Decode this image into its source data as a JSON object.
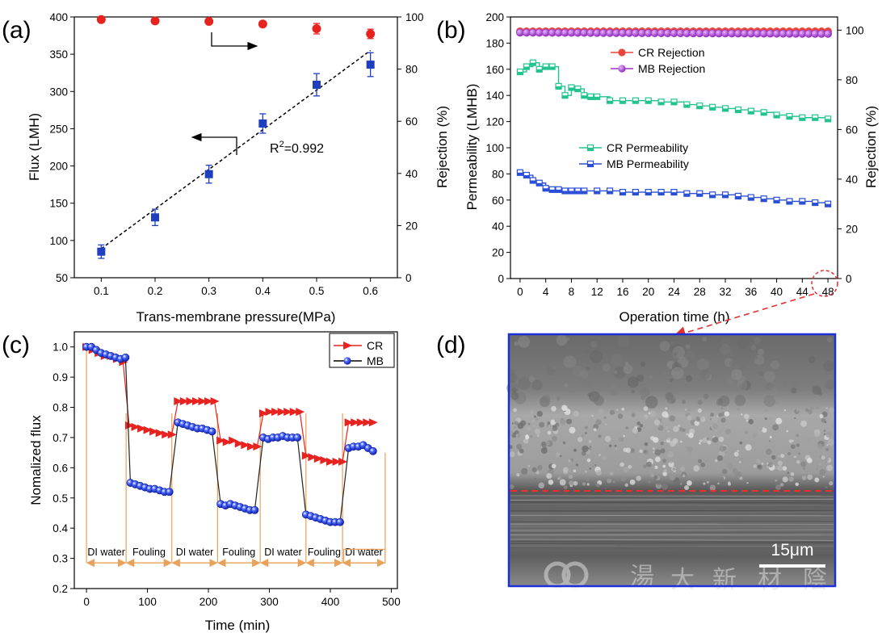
{
  "chart_data": [
    {
      "panel": "(a)",
      "type": "scatter",
      "xlabel": "Trans-membrane pressure(MPa)",
      "ylabel": "Flux (LMH)",
      "ylabel_right": "Rejection (%)",
      "xlim": [
        0.05,
        0.65
      ],
      "ylim": [
        50,
        400
      ],
      "ylim_right": [
        0,
        100
      ],
      "xticks": [
        0.1,
        0.2,
        0.3,
        0.4,
        0.5,
        0.6
      ],
      "yticks": [
        50,
        100,
        150,
        200,
        250,
        300,
        350,
        400
      ],
      "yticks_right": [
        0,
        20,
        40,
        60,
        80,
        100
      ],
      "series": [
        {
          "color": "#1f3fbf",
          "marker": "square",
          "axis": "left",
          "x": [
            0.1,
            0.2,
            0.3,
            0.4,
            0.5,
            0.6
          ],
          "y": [
            85,
            131,
            189,
            257,
            309,
            336
          ],
          "err": [
            9,
            11,
            12,
            13,
            15,
            16
          ]
        },
        {
          "color": "#e8231f",
          "marker": "circle",
          "axis": "right",
          "x": [
            0.1,
            0.2,
            0.3,
            0.4,
            0.5,
            0.6
          ],
          "y": [
            99,
            98.5,
            98.3,
            97.3,
            95.5,
            93.5
          ],
          "err": [
            0.5,
            0.8,
            0.8,
            1.0,
            2.0,
            1.8
          ]
        }
      ],
      "fit": {
        "style": "dashed",
        "x": [
          0.1,
          0.6
        ],
        "y": [
          89,
          355
        ],
        "label_base": "R",
        "label_sup": "2",
        "label_rest": "=0.992"
      }
    },
    {
      "panel": "(b)",
      "type": "line",
      "xlabel": "Operation time (h)",
      "ylabel": "Permeability (LMHB)",
      "ylabel_right": "Rejection (%)",
      "xlim": [
        -1.5,
        49.5
      ],
      "ylim": [
        0,
        200
      ],
      "ylim_right": [
        0,
        105.3
      ],
      "xticks": [
        0,
        4,
        8,
        12,
        16,
        20,
        24,
        28,
        32,
        36,
        40,
        44,
        48
      ],
      "yticks": [
        0,
        20,
        40,
        60,
        80,
        100,
        120,
        140,
        160,
        180,
        200
      ],
      "yticks_right": [
        0,
        20,
        40,
        60,
        80,
        100
      ],
      "legend": "top-right",
      "series": [
        {
          "name": "CR Rejection",
          "color": "#e8453c",
          "marker": "circle",
          "axis": "right",
          "x": [
            0,
            48
          ],
          "y": [
            99.5,
            99.5
          ]
        },
        {
          "name": "MB Rejection",
          "color": "#a030c8",
          "marker": "circle",
          "axis": "right",
          "x": [
            0,
            48
          ],
          "y": [
            99,
            98.5
          ]
        },
        {
          "name": "CR Permeability",
          "color": "#21c48f",
          "marker": "half-square",
          "axis": "left",
          "x": [
            0,
            1,
            2,
            3,
            4,
            5,
            6,
            7,
            8,
            9,
            10,
            11,
            12,
            14,
            16,
            18,
            20,
            22,
            24,
            26,
            28,
            30,
            32,
            34,
            36,
            38,
            40,
            42,
            44,
            46,
            48
          ],
          "y": [
            158,
            162,
            165,
            160,
            162,
            162,
            147,
            140,
            146,
            145,
            140,
            139,
            139,
            136,
            136,
            136,
            136,
            135,
            135,
            133,
            132,
            131,
            130,
            129,
            128,
            127,
            125,
            124,
            123,
            123,
            122
          ]
        },
        {
          "name": "MB Permeability",
          "color": "#2a4fd6",
          "marker": "half-square",
          "axis": "left",
          "x": [
            0,
            1,
            2,
            3,
            4,
            5,
            6,
            7,
            8,
            9,
            10,
            12,
            14,
            16,
            18,
            20,
            22,
            24,
            26,
            28,
            30,
            32,
            34,
            36,
            38,
            40,
            42,
            44,
            46,
            48
          ],
          "y": [
            81,
            79,
            75,
            73,
            69,
            68,
            68,
            67,
            67,
            67,
            67,
            67,
            67,
            66,
            66,
            66,
            66,
            66,
            65,
            65,
            64,
            64,
            63,
            62,
            61,
            60,
            59,
            59,
            58,
            57
          ]
        }
      ]
    },
    {
      "panel": "(c)",
      "type": "line",
      "xlabel": "Time (min)",
      "ylabel": "Nomalized flux",
      "xlim": [
        -20,
        510
      ],
      "ylim": [
        0.2,
        1.05
      ],
      "xticks": [
        0,
        100,
        200,
        300,
        400,
        500
      ],
      "yticks": [
        0.2,
        0.3,
        0.4,
        0.5,
        0.6,
        0.7,
        0.8,
        0.9,
        1.0
      ],
      "legend": "top-right",
      "series": [
        {
          "name": "CR",
          "color": "#e8231f",
          "marker": "triangle-right",
          "x": [
            0,
            10,
            20,
            30,
            40,
            50,
            60,
            70,
            80,
            90,
            100,
            110,
            120,
            130,
            140,
            150,
            160,
            170,
            180,
            190,
            200,
            210,
            220,
            230,
            240,
            250,
            260,
            270,
            280,
            290,
            300,
            310,
            320,
            330,
            340,
            350,
            360,
            370,
            380,
            390,
            400,
            410,
            420,
            430,
            440,
            450,
            460,
            470
          ],
          "y": [
            1.0,
            0.99,
            0.98,
            0.97,
            0.97,
            0.96,
            0.95,
            0.74,
            0.735,
            0.73,
            0.725,
            0.72,
            0.715,
            0.71,
            0.71,
            0.82,
            0.82,
            0.82,
            0.82,
            0.82,
            0.82,
            0.82,
            0.69,
            0.685,
            0.69,
            0.68,
            0.675,
            0.67,
            0.67,
            0.78,
            0.785,
            0.785,
            0.785,
            0.785,
            0.785,
            0.785,
            0.64,
            0.635,
            0.63,
            0.625,
            0.62,
            0.62,
            0.62,
            0.75,
            0.75,
            0.75,
            0.75,
            0.75
          ]
        },
        {
          "name": "MB",
          "color": "#1a2fd0",
          "marker": "sphere",
          "x": [
            0,
            8,
            16,
            24,
            32,
            40,
            48,
            56,
            64,
            72,
            80,
            88,
            96,
            104,
            112,
            120,
            128,
            136,
            150,
            158,
            166,
            174,
            182,
            190,
            198,
            206,
            220,
            228,
            236,
            244,
            252,
            260,
            268,
            276,
            290,
            298,
            306,
            314,
            322,
            330,
            338,
            346,
            360,
            368,
            376,
            384,
            392,
            400,
            408,
            416,
            430,
            438,
            446,
            454,
            462,
            470
          ],
          "y": [
            1.0,
            1.0,
            0.99,
            0.98,
            0.975,
            0.97,
            0.965,
            0.96,
            0.965,
            0.55,
            0.545,
            0.54,
            0.535,
            0.53,
            0.53,
            0.525,
            0.52,
            0.52,
            0.75,
            0.745,
            0.74,
            0.735,
            0.73,
            0.73,
            0.725,
            0.72,
            0.48,
            0.475,
            0.48,
            0.475,
            0.47,
            0.465,
            0.46,
            0.46,
            0.7,
            0.695,
            0.7,
            0.7,
            0.705,
            0.7,
            0.7,
            0.7,
            0.445,
            0.44,
            0.435,
            0.43,
            0.425,
            0.42,
            0.42,
            0.42,
            0.665,
            0.67,
            0.67,
            0.675,
            0.665,
            0.655
          ]
        }
      ],
      "segments": [
        {
          "label": "DI water",
          "start": 0,
          "end": 65
        },
        {
          "label": "Fouling",
          "start": 65,
          "end": 140
        },
        {
          "label": "DI water",
          "start": 140,
          "end": 215
        },
        {
          "label": "Fouling",
          "start": 215,
          "end": 285
        },
        {
          "label": "DI water",
          "start": 285,
          "end": 360
        },
        {
          "label": "Fouling",
          "start": 360,
          "end": 420
        },
        {
          "label": "DI water",
          "start": 420,
          "end": 490
        }
      ]
    }
  ],
  "panel_d": {
    "label": "(d)",
    "scale_bar": "15μm",
    "watermark_chars": [
      "湯",
      "大",
      "新",
      "材",
      "陰"
    ]
  },
  "colors": {
    "flux_blue": "#1f3fbf",
    "rejection_red": "#e8231f",
    "cr_rejection": "#e8453c",
    "mb_rejection": "#a030c8",
    "cr_perm": "#21c48f",
    "mb_perm": "#2a4fd6",
    "segment_orange": "#e8a25a",
    "frame_blue": "#1c2fd8",
    "dashed_red": "#e53030"
  }
}
